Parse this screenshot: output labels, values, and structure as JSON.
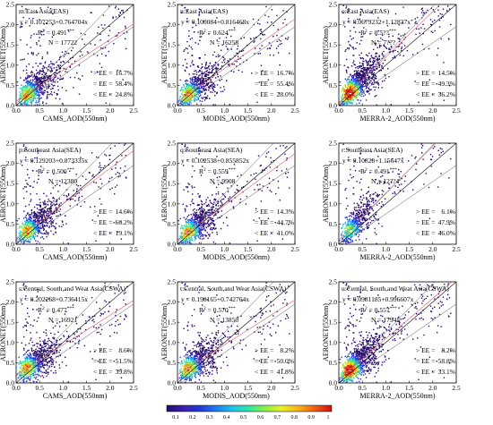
{
  "chart_data": [
    {
      "type": "scatter",
      "panel": "m",
      "region": "m:East Asia(EAS)",
      "equation": "y = 0.107253+0.764704x",
      "r2": "0.491",
      "n": "N = 17722",
      "xlabel": "CAMS_AOD(550nm)",
      "ylabel": "AERONET(550nm)",
      "ee": {
        "above": "16.7%",
        "within": "58.4%",
        "below": "24.8%"
      },
      "xlim": [
        0,
        2.5
      ],
      "ylim": [
        0,
        2.5
      ],
      "intercept": 0.107253,
      "slope": 0.764704,
      "density": "medium"
    },
    {
      "type": "scatter",
      "panel": "n",
      "region": "n:East Asia(EAS)",
      "equation": "y = 0.100084+0.816468x",
      "r2": "0.624",
      "n": "N = 16258",
      "xlabel": "MODIS_AOD(550nm)",
      "ylabel": "AERONET(550nm)",
      "ee": {
        "above": "16.7%",
        "within": "55.4%",
        "below": "28.0%"
      },
      "xlim": [
        0,
        2.5
      ],
      "ylim": [
        0,
        2.5
      ],
      "intercept": 0.100084,
      "slope": 0.816468,
      "density": "medium"
    },
    {
      "type": "scatter",
      "panel": "o",
      "region": "o:East Asia(EAS)",
      "equation": "y = 0.0679232+1.12837x",
      "r2": "0.5??",
      "n": "N = 7???",
      "xlabel": "MERRA-2_AOD(550nm)",
      "ylabel": "AERONET(550nm)",
      "ee": {
        "above": "14.5%",
        "within": "49.3%",
        "below": "36.2%"
      },
      "xlim": [
        0,
        2.5
      ],
      "ylim": [
        0,
        2.5
      ],
      "intercept": 0.0679232,
      "slope": 1.12837,
      "density": "high"
    },
    {
      "type": "scatter",
      "panel": "p",
      "region": "p:Southeast Asia(SEA)",
      "equation": "y = 0.129203+0.873335x",
      "r2": "0.500",
      "n": "N = 12380",
      "xlabel": "CAMS_AOD(550nm)",
      "ylabel": "AERONET(550nm)",
      "ee": {
        "above": "14.6%",
        "within": "66.2%",
        "below": "19.1%"
      },
      "xlim": [
        0,
        2.5
      ],
      "ylim": [
        0,
        2.5
      ],
      "intercept": 0.129203,
      "slope": 0.873335,
      "density": "medium"
    },
    {
      "type": "scatter",
      "panel": "q",
      "region": "q:Southeast Asia(SEA)",
      "equation": "y = 0.102538+0.855852x",
      "r2": "0.559",
      "n": "N = 9908",
      "xlabel": "MODIS_AOD(550nm)",
      "ylabel": "AERONET(550nm)",
      "ee": {
        "above": "14.3%",
        "within": "44.7%",
        "below": "41.0%"
      },
      "xlim": [
        0,
        2.5
      ],
      "ylim": [
        0,
        2.5
      ],
      "intercept": 0.102538,
      "slope": 0.855852,
      "density": "medium"
    },
    {
      "type": "scatter",
      "panel": "r",
      "region": "r:Southeast Asia(SEA)",
      "equation": "y = 0.10828+1.15647x",
      "r2": "0.491",
      "n": "N = 12??4",
      "xlabel": "MERRA-2_AOD(550nm)",
      "ylabel": "AERONET(550nm)",
      "ee": {
        "above": "6.1%",
        "within": "47.9%",
        "below": "46.0%"
      },
      "xlim": [
        0,
        2.5
      ],
      "ylim": [
        0,
        2.5
      ],
      "intercept": 0.10828,
      "slope": 1.15647,
      "density": "low"
    },
    {
      "type": "scatter",
      "panel": "s",
      "region": "s:Central, South,and Weat Asia(CSWA)",
      "equation": "y = 0.202268+0.736415x",
      "r2": "0.477",
      "n": "N = 16921",
      "xlabel": "CAMS_AOD(550nm)",
      "ylabel": "AERONET(550nm)",
      "ee": {
        "above": "8.6%",
        "within": "51.5%",
        "below": "39.8%"
      },
      "xlim": [
        0,
        2.5
      ],
      "ylim": [
        0,
        2.5
      ],
      "intercept": 0.202268,
      "slope": 0.736415,
      "density": "medium"
    },
    {
      "type": "scatter",
      "panel": "t",
      "region": "t:Central, South,and Weat Asia(CSWA)",
      "equation": "y = 0.198165+0.742764x",
      "r2": "0.570",
      "n": "N = 13850",
      "xlabel": "MODIS_AOD(550nm)",
      "ylabel": "AERONET(550nm)",
      "ee": {
        "above": "8.2%",
        "within": "50.0%",
        "below": "41.8%"
      },
      "xlim": [
        0,
        2.5
      ],
      "ylim": [
        0,
        2.5
      ],
      "intercept": 0.198165,
      "slope": 0.742764,
      "density": "medium"
    },
    {
      "type": "scatter",
      "panel": "u",
      "region": "u:Central, South,and Weat Asia(CSWA)",
      "equation": "y = 0.0981185+0.996607x",
      "r2": "0.557",
      "n": "N = 17945",
      "xlabel": "MERRA-2_AOD(550nm)",
      "ylabel": "AERONET(550nm)",
      "ee": {
        "above": "8.2%",
        "within": "58.8%",
        "below": "33.1%"
      },
      "xlim": [
        0,
        2.5
      ],
      "ylim": [
        0,
        2.5
      ],
      "intercept": 0.0981185,
      "slope": 0.996607,
      "density": "high"
    }
  ],
  "ticks": [
    "0.0",
    "0.5",
    "1.0",
    "1.5",
    "2.0",
    "2.5"
  ],
  "labels": {
    "r2_prefix": "R",
    "r2_sup": "2",
    "r2_eq": " = ",
    "stars": "***",
    "ee_above": "> EE =",
    "ee_within": "= EE =",
    "ee_below": "< EE ="
  },
  "colorbar": {
    "ticks": [
      "0.1",
      "0.2",
      "0.3",
      "0.4",
      "0.5",
      "0.6",
      "0.7",
      "0.8",
      "0.9",
      "1"
    ],
    "colors": [
      "#2a0a6e",
      "#3b1fb0",
      "#1f3ad8",
      "#1f7ef0",
      "#20c4e8",
      "#2ee8a0",
      "#8ef040",
      "#e8f020",
      "#f8b018",
      "#f05a14",
      "#d01010"
    ]
  },
  "styles": {
    "ee_line": "#555555",
    "fit_line": "#e06070",
    "one_to_one": "#000000"
  }
}
